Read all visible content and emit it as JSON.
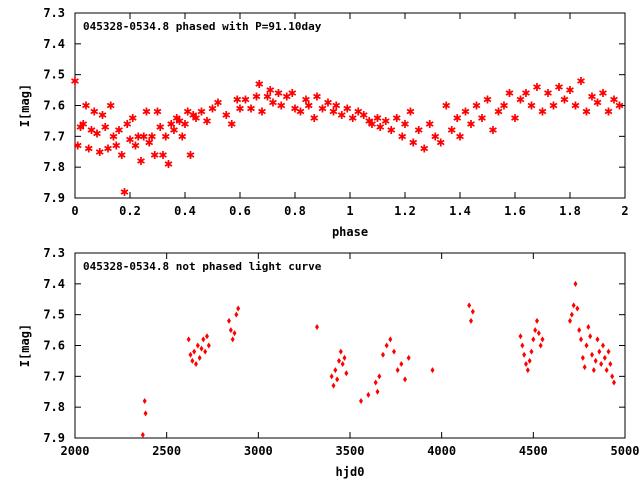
{
  "chart_data": [
    {
      "type": "scatter",
      "title": "045328-0534.8 phased with P=91.10day",
      "xlabel": "phase",
      "ylabel": "I[mag]",
      "xlim": [
        0,
        2
      ],
      "ylim": [
        7.9,
        7.3
      ],
      "y_inverted": true,
      "grid": false,
      "legend": "none",
      "color": "#ff0000",
      "marker": "star",
      "x_ticks": [
        "0",
        "0.2",
        "0.4",
        "0.6",
        "0.8",
        "1",
        "1.2",
        "1.4",
        "1.6",
        "1.8",
        "2"
      ],
      "y_ticks": [
        "7.3",
        "7.4",
        "7.5",
        "7.6",
        "7.7",
        "7.8",
        "7.9"
      ],
      "points": [
        [
          0.0,
          7.52
        ],
        [
          0.01,
          7.73
        ],
        [
          0.02,
          7.67
        ],
        [
          0.03,
          7.66
        ],
        [
          0.04,
          7.6
        ],
        [
          0.05,
          7.74
        ],
        [
          0.06,
          7.68
        ],
        [
          0.07,
          7.62
        ],
        [
          0.08,
          7.69
        ],
        [
          0.09,
          7.75
        ],
        [
          0.1,
          7.63
        ],
        [
          0.11,
          7.67
        ],
        [
          0.12,
          7.74
        ],
        [
          0.13,
          7.6
        ],
        [
          0.14,
          7.7
        ],
        [
          0.15,
          7.73
        ],
        [
          0.16,
          7.68
        ],
        [
          0.17,
          7.76
        ],
        [
          0.18,
          7.88
        ],
        [
          0.19,
          7.66
        ],
        [
          0.2,
          7.71
        ],
        [
          0.21,
          7.64
        ],
        [
          0.22,
          7.73
        ],
        [
          0.23,
          7.7
        ],
        [
          0.24,
          7.78
        ],
        [
          0.25,
          7.7
        ],
        [
          0.26,
          7.62
        ],
        [
          0.27,
          7.72
        ],
        [
          0.28,
          7.7
        ],
        [
          0.29,
          7.76
        ],
        [
          0.3,
          7.62
        ],
        [
          0.31,
          7.67
        ],
        [
          0.32,
          7.76
        ],
        [
          0.33,
          7.7
        ],
        [
          0.34,
          7.79
        ],
        [
          0.35,
          7.66
        ],
        [
          0.36,
          7.68
        ],
        [
          0.37,
          7.64
        ],
        [
          0.38,
          7.65
        ],
        [
          0.39,
          7.7
        ],
        [
          0.4,
          7.66
        ],
        [
          0.41,
          7.62
        ],
        [
          0.42,
          7.76
        ],
        [
          0.43,
          7.63
        ],
        [
          0.44,
          7.64
        ],
        [
          0.46,
          7.62
        ],
        [
          0.48,
          7.65
        ],
        [
          0.5,
          7.61
        ],
        [
          0.52,
          7.59
        ],
        [
          0.55,
          7.63
        ],
        [
          0.57,
          7.66
        ],
        [
          0.59,
          7.58
        ],
        [
          0.6,
          7.61
        ],
        [
          0.62,
          7.58
        ],
        [
          0.64,
          7.61
        ],
        [
          0.66,
          7.57
        ],
        [
          0.67,
          7.53
        ],
        [
          0.68,
          7.62
        ],
        [
          0.7,
          7.57
        ],
        [
          0.71,
          7.55
        ],
        [
          0.72,
          7.59
        ],
        [
          0.74,
          7.56
        ],
        [
          0.75,
          7.6
        ],
        [
          0.77,
          7.57
        ],
        [
          0.79,
          7.56
        ],
        [
          0.8,
          7.61
        ],
        [
          0.82,
          7.62
        ],
        [
          0.84,
          7.58
        ],
        [
          0.85,
          7.6
        ],
        [
          0.87,
          7.64
        ],
        [
          0.88,
          7.57
        ],
        [
          0.9,
          7.61
        ],
        [
          0.92,
          7.59
        ],
        [
          0.94,
          7.62
        ],
        [
          0.95,
          7.6
        ],
        [
          0.97,
          7.63
        ],
        [
          0.99,
          7.61
        ],
        [
          1.01,
          7.64
        ],
        [
          1.03,
          7.62
        ],
        [
          1.05,
          7.63
        ],
        [
          1.07,
          7.65
        ],
        [
          1.08,
          7.66
        ],
        [
          1.1,
          7.64
        ],
        [
          1.11,
          7.67
        ],
        [
          1.13,
          7.65
        ],
        [
          1.15,
          7.68
        ],
        [
          1.17,
          7.64
        ],
        [
          1.19,
          7.7
        ],
        [
          1.2,
          7.66
        ],
        [
          1.22,
          7.62
        ],
        [
          1.23,
          7.72
        ],
        [
          1.25,
          7.68
        ],
        [
          1.27,
          7.74
        ],
        [
          1.29,
          7.66
        ],
        [
          1.31,
          7.7
        ],
        [
          1.33,
          7.72
        ],
        [
          1.35,
          7.6
        ],
        [
          1.37,
          7.68
        ],
        [
          1.39,
          7.64
        ],
        [
          1.4,
          7.7
        ],
        [
          1.42,
          7.62
        ],
        [
          1.44,
          7.66
        ],
        [
          1.46,
          7.6
        ],
        [
          1.48,
          7.64
        ],
        [
          1.5,
          7.58
        ],
        [
          1.52,
          7.68
        ],
        [
          1.54,
          7.62
        ],
        [
          1.56,
          7.6
        ],
        [
          1.58,
          7.56
        ],
        [
          1.6,
          7.64
        ],
        [
          1.62,
          7.58
        ],
        [
          1.64,
          7.56
        ],
        [
          1.66,
          7.6
        ],
        [
          1.68,
          7.54
        ],
        [
          1.7,
          7.62
        ],
        [
          1.72,
          7.56
        ],
        [
          1.74,
          7.6
        ],
        [
          1.76,
          7.54
        ],
        [
          1.78,
          7.58
        ],
        [
          1.8,
          7.55
        ],
        [
          1.82,
          7.6
        ],
        [
          1.84,
          7.52
        ],
        [
          1.86,
          7.62
        ],
        [
          1.88,
          7.57
        ],
        [
          1.9,
          7.59
        ],
        [
          1.92,
          7.56
        ],
        [
          1.94,
          7.62
        ],
        [
          1.96,
          7.58
        ],
        [
          1.98,
          7.6
        ]
      ]
    },
    {
      "type": "scatter",
      "title": "045328-0534.8 not phased light curve",
      "xlabel": "hjd0",
      "ylabel": "I[mag]",
      "xlim": [
        2000,
        5000
      ],
      "ylim": [
        7.9,
        7.3
      ],
      "y_inverted": true,
      "grid": false,
      "legend": "none",
      "color": "#ff0000",
      "marker": "diamond",
      "x_ticks": [
        "2000",
        "2500",
        "3000",
        "3500",
        "4000",
        "4500",
        "5000"
      ],
      "y_ticks": [
        "7.3",
        "7.4",
        "7.5",
        "7.6",
        "7.7",
        "7.8",
        "7.9"
      ],
      "points": [
        [
          2370,
          7.89
        ],
        [
          2380,
          7.78
        ],
        [
          2385,
          7.82
        ],
        [
          2620,
          7.58
        ],
        [
          2630,
          7.63
        ],
        [
          2640,
          7.65
        ],
        [
          2650,
          7.62
        ],
        [
          2660,
          7.66
        ],
        [
          2670,
          7.6
        ],
        [
          2680,
          7.64
        ],
        [
          2690,
          7.61
        ],
        [
          2700,
          7.58
        ],
        [
          2710,
          7.62
        ],
        [
          2720,
          7.57
        ],
        [
          2730,
          7.6
        ],
        [
          2840,
          7.52
        ],
        [
          2850,
          7.55
        ],
        [
          2860,
          7.58
        ],
        [
          2870,
          7.56
        ],
        [
          2880,
          7.5
        ],
        [
          2890,
          7.48
        ],
        [
          3320,
          7.54
        ],
        [
          3400,
          7.7
        ],
        [
          3410,
          7.73
        ],
        [
          3420,
          7.68
        ],
        [
          3430,
          7.71
        ],
        [
          3440,
          7.65
        ],
        [
          3450,
          7.62
        ],
        [
          3460,
          7.66
        ],
        [
          3470,
          7.64
        ],
        [
          3480,
          7.69
        ],
        [
          3560,
          7.78
        ],
        [
          3600,
          7.76
        ],
        [
          3640,
          7.72
        ],
        [
          3650,
          7.75
        ],
        [
          3660,
          7.7
        ],
        [
          3680,
          7.63
        ],
        [
          3700,
          7.6
        ],
        [
          3720,
          7.58
        ],
        [
          3740,
          7.62
        ],
        [
          3760,
          7.68
        ],
        [
          3780,
          7.66
        ],
        [
          3800,
          7.71
        ],
        [
          3820,
          7.64
        ],
        [
          3950,
          7.68
        ],
        [
          4150,
          7.47
        ],
        [
          4160,
          7.52
        ],
        [
          4170,
          7.49
        ],
        [
          4430,
          7.57
        ],
        [
          4440,
          7.6
        ],
        [
          4450,
          7.63
        ],
        [
          4460,
          7.66
        ],
        [
          4470,
          7.68
        ],
        [
          4480,
          7.65
        ],
        [
          4490,
          7.62
        ],
        [
          4500,
          7.58
        ],
        [
          4510,
          7.55
        ],
        [
          4520,
          7.52
        ],
        [
          4530,
          7.56
        ],
        [
          4540,
          7.6
        ],
        [
          4550,
          7.58
        ],
        [
          4700,
          7.52
        ],
        [
          4710,
          7.5
        ],
        [
          4720,
          7.47
        ],
        [
          4730,
          7.4
        ],
        [
          4740,
          7.48
        ],
        [
          4750,
          7.55
        ],
        [
          4760,
          7.58
        ],
        [
          4770,
          7.64
        ],
        [
          4780,
          7.67
        ],
        [
          4790,
          7.6
        ],
        [
          4800,
          7.54
        ],
        [
          4810,
          7.57
        ],
        [
          4820,
          7.63
        ],
        [
          4830,
          7.68
        ],
        [
          4840,
          7.65
        ],
        [
          4850,
          7.58
        ],
        [
          4860,
          7.62
        ],
        [
          4870,
          7.66
        ],
        [
          4880,
          7.6
        ],
        [
          4890,
          7.64
        ],
        [
          4900,
          7.68
        ],
        [
          4910,
          7.62
        ],
        [
          4920,
          7.66
        ],
        [
          4930,
          7.7
        ],
        [
          4940,
          7.72
        ]
      ]
    }
  ]
}
